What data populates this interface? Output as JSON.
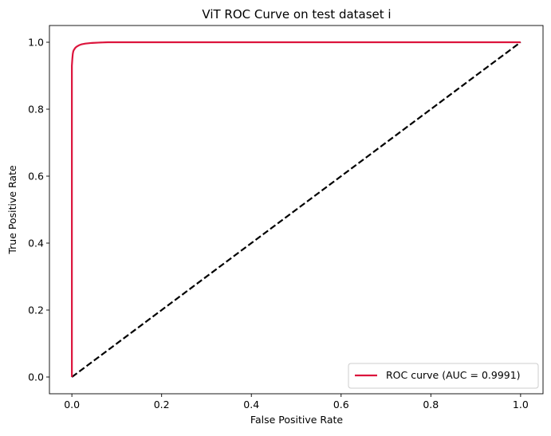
{
  "chart_data": {
    "type": "line",
    "title": "ViT ROC Curve on test dataset i",
    "xlabel": "False Positive Rate",
    "ylabel": "True Positive Rate",
    "xlim": [
      -0.05,
      1.05
    ],
    "ylim": [
      -0.05,
      1.05
    ],
    "x_ticks": [
      0.0,
      0.2,
      0.4,
      0.6,
      0.8,
      1.0
    ],
    "y_ticks": [
      0.0,
      0.2,
      0.4,
      0.6,
      0.8,
      1.0
    ],
    "x_tick_labels": [
      "0.0",
      "0.2",
      "0.4",
      "0.6",
      "0.8",
      "1.0"
    ],
    "y_tick_labels": [
      "0.0",
      "0.2",
      "0.4",
      "0.6",
      "0.8",
      "1.0"
    ],
    "grid": false,
    "legend_position": "lower-right",
    "series": [
      {
        "name": "ROC curve (AUC = 0.9991)",
        "color": "#dc143c",
        "style": "solid",
        "x": [
          0.0,
          0.0,
          0.001,
          0.002,
          0.003,
          0.004,
          0.006,
          0.008,
          0.012,
          0.016,
          0.022,
          0.03,
          0.045,
          0.06,
          0.08,
          1.0
        ],
        "y": [
          0.0,
          0.93,
          0.95,
          0.965,
          0.972,
          0.976,
          0.98,
          0.984,
          0.988,
          0.991,
          0.994,
          0.996,
          0.998,
          0.999,
          1.0,
          1.0
        ]
      },
      {
        "color": "#000000",
        "style": "dashed",
        "x": [
          0.0,
          1.0
        ],
        "y": [
          0.0,
          1.0
        ]
      }
    ]
  }
}
